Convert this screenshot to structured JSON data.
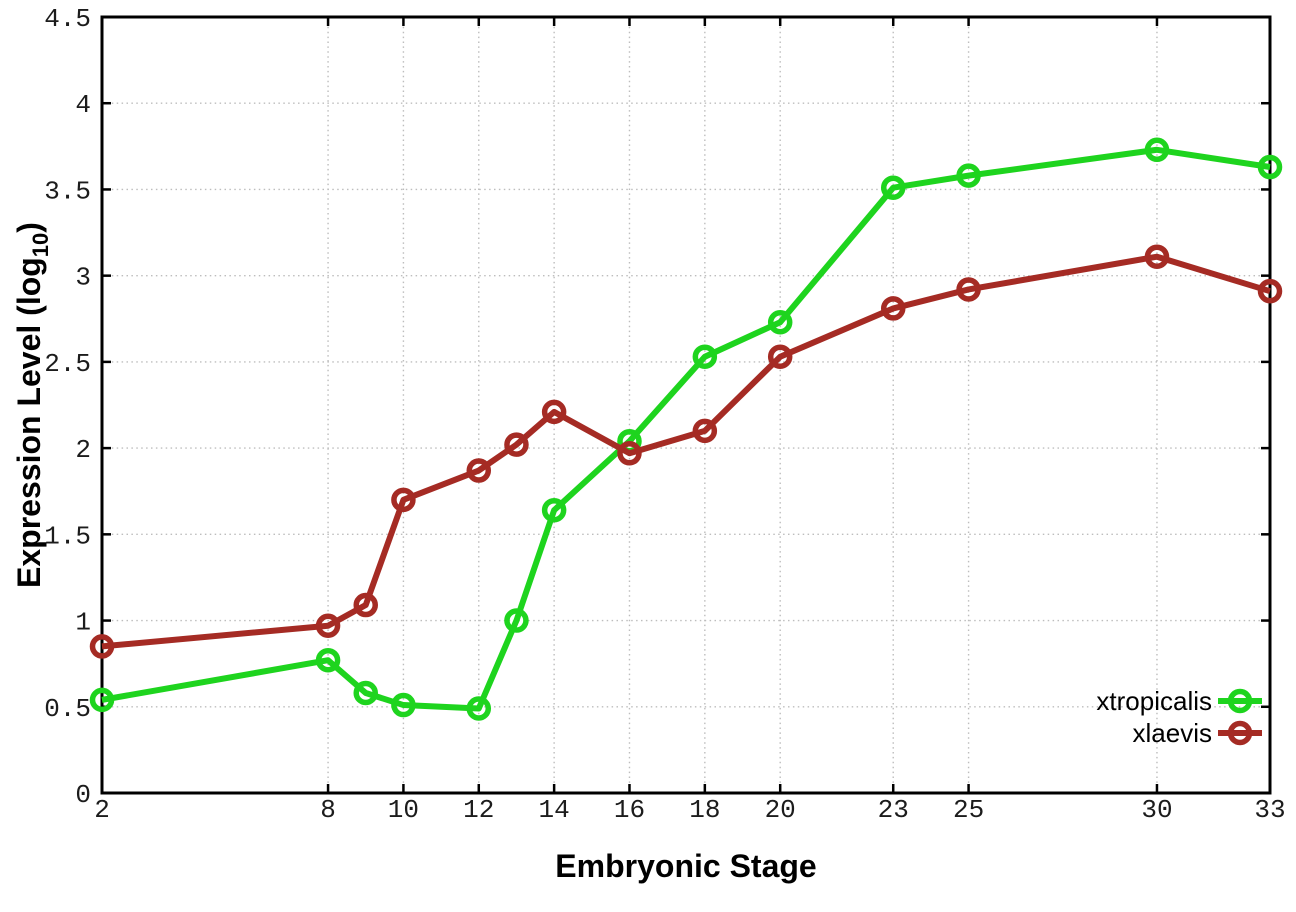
{
  "chart_data": {
    "type": "line",
    "title": "",
    "xlabel": "Embryonic Stage",
    "ylabel": {
      "main": "Expression Level (log",
      "subscript": "10",
      "suffix": ")"
    },
    "xlim": [
      2,
      33
    ],
    "ylim": [
      0,
      4.5
    ],
    "grid": true,
    "grid_style": "dotted",
    "legend_position": "inside-bottom-right",
    "x": [
      2,
      8,
      9,
      10,
      12,
      13,
      14,
      16,
      18,
      20,
      23,
      25,
      30,
      33
    ],
    "xtick_values": [
      2,
      8,
      10,
      12,
      14,
      16,
      18,
      20,
      23,
      25,
      30,
      33
    ],
    "xtick_labels": [
      "2",
      "8",
      "10",
      "12",
      "14",
      "16",
      "18",
      "20",
      "23",
      "25",
      "30",
      "33"
    ],
    "ytick_values": [
      0,
      0.5,
      1,
      1.5,
      2,
      2.5,
      3,
      3.5,
      4,
      4.5
    ],
    "ytick_labels": [
      "0",
      "0.5",
      "1",
      "1.5",
      "2",
      "2.5",
      "3",
      "3.5",
      "4",
      "4.5"
    ],
    "series": [
      {
        "name": "xtropicalis",
        "color": "#1ed41e",
        "marker": "open-circle",
        "values": [
          0.54,
          0.77,
          0.58,
          0.51,
          0.49,
          1.0,
          1.64,
          2.04,
          2.53,
          2.73,
          3.51,
          3.58,
          3.73,
          3.63
        ]
      },
      {
        "name": "xlaevis",
        "color": "#a52b24",
        "marker": "open-circle",
        "values": [
          0.85,
          0.97,
          1.09,
          1.7,
          1.87,
          2.02,
          2.21,
          1.97,
          2.1,
          2.53,
          2.81,
          2.92,
          3.11,
          2.91
        ]
      }
    ]
  },
  "style": {
    "background": "#ffffff",
    "axis_color": "#000000",
    "grid_color": "#bdbdbd",
    "tick_label_color": "#1c1c1c",
    "text_color": "#000000"
  }
}
